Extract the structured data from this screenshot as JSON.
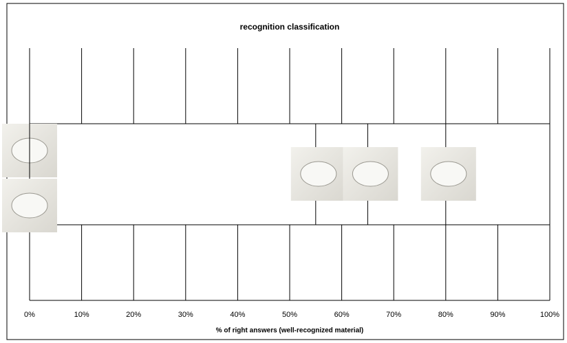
{
  "chart_data": {
    "type": "scatter",
    "title": "recognition classification",
    "x_label": "% of right answers (well-recognized material)",
    "x": [
      0,
      0,
      55,
      65,
      80
    ],
    "xlim": [
      0,
      100
    ],
    "xticks": [
      {
        "value": 0,
        "label": "0%"
      },
      {
        "value": 10,
        "label": "10%"
      },
      {
        "value": 20,
        "label": "20%"
      },
      {
        "value": 30,
        "label": "30%"
      },
      {
        "value": 40,
        "label": "40%"
      },
      {
        "value": 50,
        "label": "50%"
      },
      {
        "value": 60,
        "label": "60%"
      },
      {
        "value": 70,
        "label": "70%"
      },
      {
        "value": 80,
        "label": "80%"
      },
      {
        "value": 90,
        "label": "90%"
      },
      {
        "value": 100,
        "label": "100%"
      }
    ],
    "grid": true
  }
}
